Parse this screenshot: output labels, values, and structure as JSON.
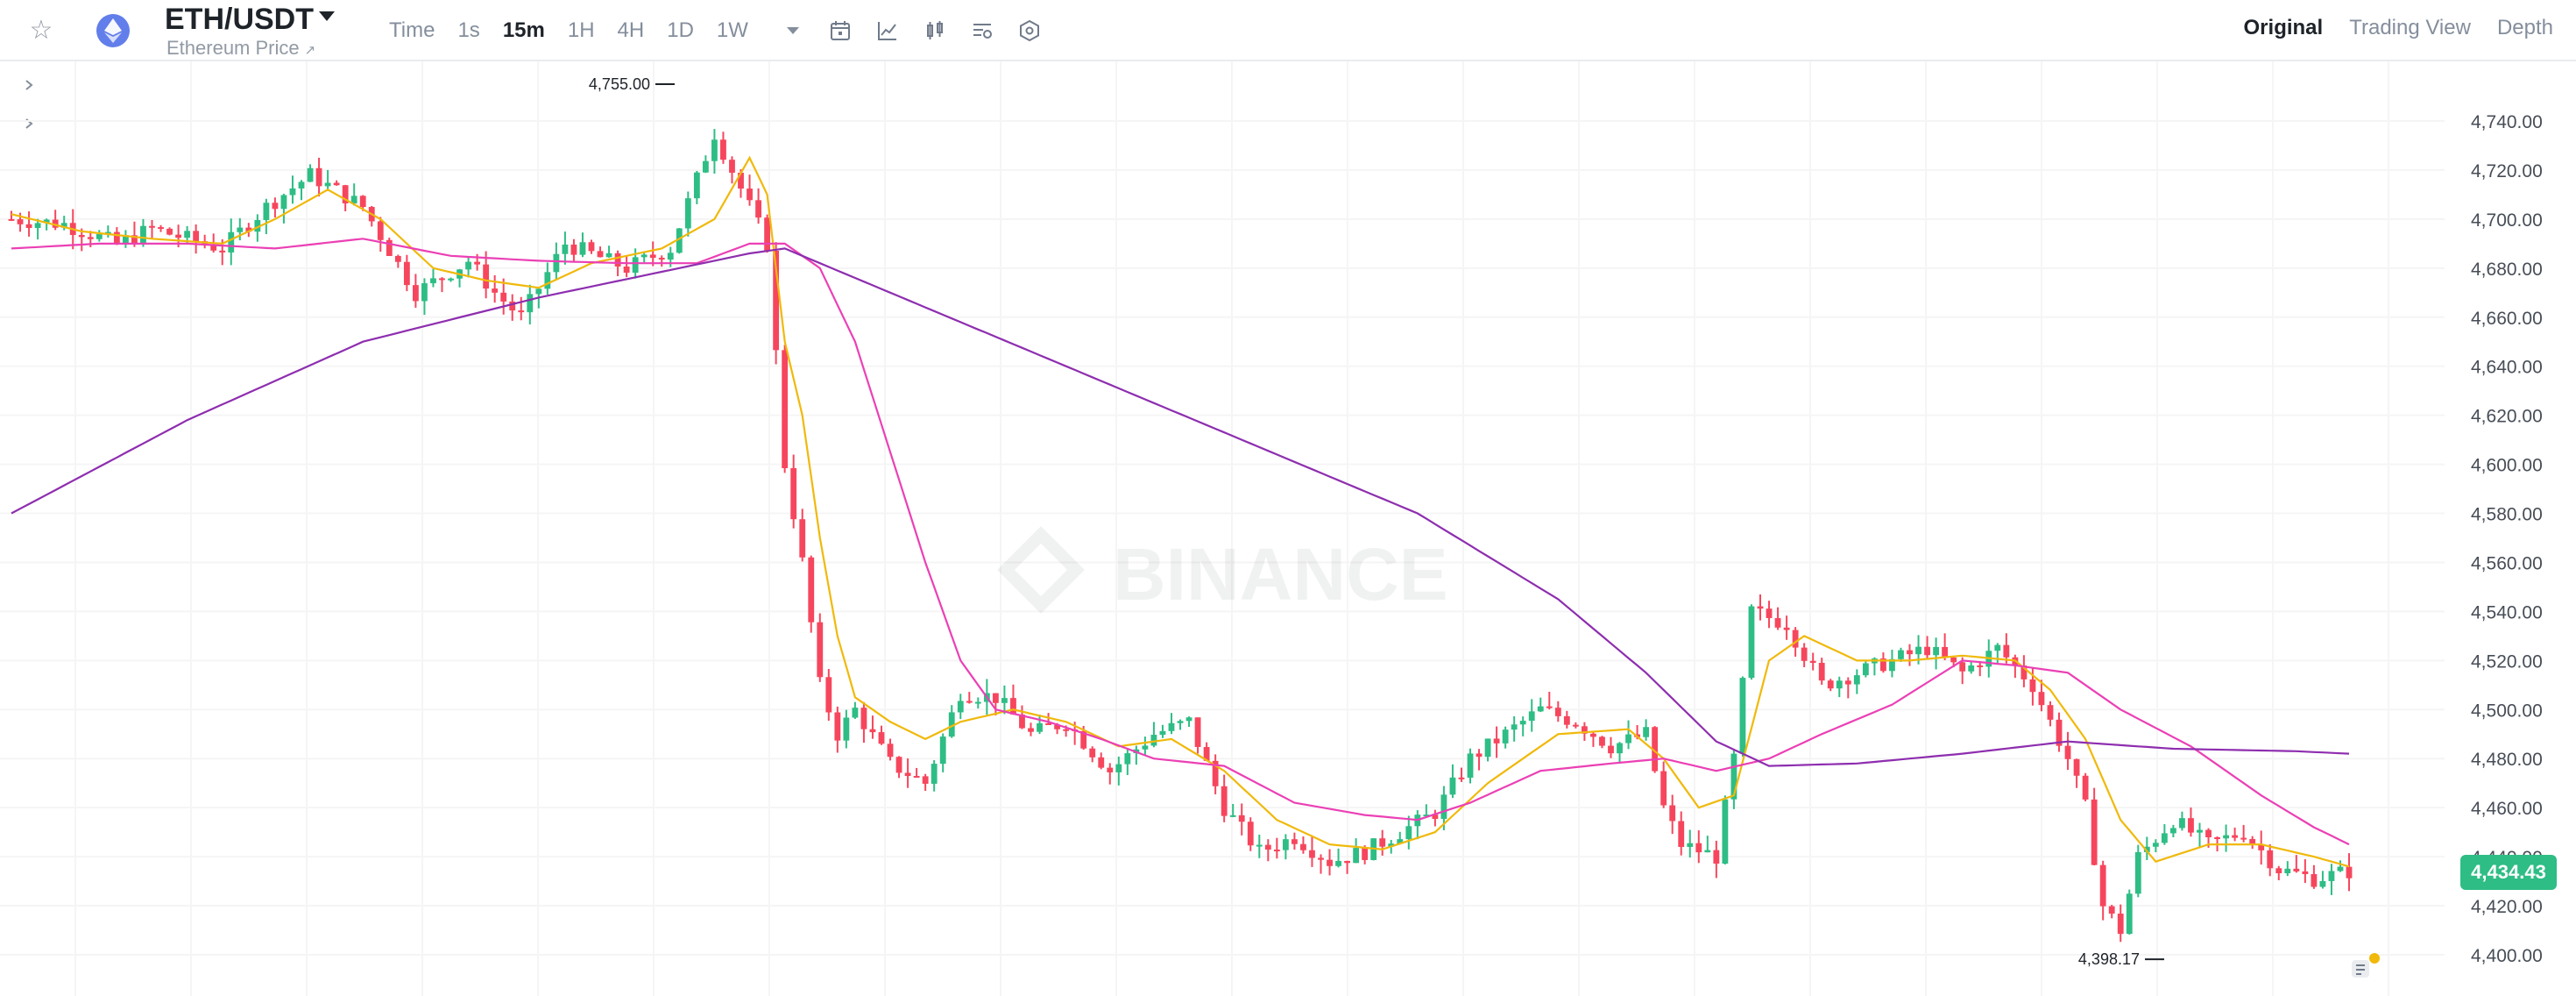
{
  "header": {
    "pair": "ETH/USDT",
    "subtitle": "Ethereum Price",
    "subtitle_link_glyph": "↗",
    "coin_icon": "ethereum-icon",
    "intervals": [
      "Time",
      "1s",
      "15m",
      "1H",
      "4H",
      "1D",
      "1W"
    ],
    "active_interval": "15m",
    "tool_icons": [
      "calendar-icon",
      "indicator-icon",
      "candle-type-icon",
      "settings-list-icon",
      "hexagon-settings-icon"
    ],
    "views": [
      "Original",
      "Trading View",
      "Depth"
    ],
    "active_view": "Original"
  },
  "watermark": "BINANCE",
  "current_price_label": "4,434.43",
  "colors": {
    "up": "#2ebd85",
    "down": "#f6465d",
    "ma7": "#f0b90b",
    "ma25": "#eb40b5",
    "ma99": "#8e2eaf",
    "grid": "#f5f5f5",
    "accent_tag": "#2ebd85"
  },
  "chart_data": {
    "type": "candlestick",
    "y_axis": {
      "min": 4390,
      "max": 4760,
      "ticks": [
        4400,
        4420,
        4440,
        4460,
        4480,
        4500,
        4520,
        4540,
        4560,
        4580,
        4600,
        4620,
        4640,
        4660,
        4680,
        4700,
        4720,
        4740
      ],
      "tick_labels": [
        "4,400.00",
        "4,420.00",
        "4,440.00",
        "4,460.00",
        "4,480.00",
        "4,500.00",
        "4,520.00",
        "4,540.00",
        "4,560.00",
        "4,580.00",
        "4,600.00",
        "4,620.00",
        "4,640.00",
        "4,660.00",
        "4,680.00",
        "4,700.00",
        "4,720.00",
        "4,740.00"
      ]
    },
    "grid": true,
    "annotations": [
      {
        "label": "4,755.00",
        "value": 4755,
        "type": "high"
      },
      {
        "label": "4,398.17",
        "value": 4398.17,
        "type": "low"
      }
    ],
    "current_price": 4434.43,
    "close_path": [
      [
        0,
        4700
      ],
      [
        6,
        4698
      ],
      [
        12,
        4690
      ],
      [
        16,
        4696
      ],
      [
        24,
        4688
      ],
      [
        29,
        4705
      ],
      [
        34,
        4718
      ],
      [
        40,
        4705
      ],
      [
        46,
        4670
      ],
      [
        52,
        4683
      ],
      [
        55,
        4670
      ],
      [
        58,
        4660
      ],
      [
        63,
        4690
      ],
      [
        70,
        4680
      ],
      [
        75,
        4688
      ],
      [
        80,
        4735
      ],
      [
        84,
        4705
      ],
      [
        86,
        4690
      ],
      [
        88,
        4600
      ],
      [
        90,
        4560
      ],
      [
        92,
        4510
      ],
      [
        94,
        4490
      ],
      [
        96,
        4500
      ],
      [
        100,
        4478
      ],
      [
        104,
        4470
      ],
      [
        108,
        4507
      ],
      [
        112,
        4505
      ],
      [
        116,
        4490
      ],
      [
        120,
        4495
      ],
      [
        125,
        4475
      ],
      [
        130,
        4490
      ],
      [
        134,
        4495
      ],
      [
        138,
        4460
      ],
      [
        142,
        4442
      ],
      [
        146,
        4448
      ],
      [
        150,
        4438
      ],
      [
        154,
        4442
      ],
      [
        158,
        4450
      ],
      [
        162,
        4458
      ],
      [
        166,
        4480
      ],
      [
        170,
        4490
      ],
      [
        174,
        4500
      ],
      [
        178,
        4495
      ],
      [
        182,
        4485
      ],
      [
        186,
        4490
      ],
      [
        188,
        4460
      ],
      [
        190,
        4445
      ],
      [
        194,
        4440
      ],
      [
        196,
        4480
      ],
      [
        198,
        4540
      ],
      [
        202,
        4535
      ],
      [
        206,
        4510
      ],
      [
        210,
        4515
      ],
      [
        214,
        4520
      ],
      [
        218,
        4525
      ],
      [
        222,
        4515
      ],
      [
        226,
        4525
      ],
      [
        230,
        4510
      ],
      [
        232,
        4495
      ],
      [
        234,
        4480
      ],
      [
        236,
        4460
      ],
      [
        238,
        4420
      ],
      [
        240,
        4410
      ],
      [
        242,
        4440
      ],
      [
        246,
        4455
      ],
      [
        250,
        4445
      ],
      [
        254,
        4450
      ],
      [
        258,
        4435
      ],
      [
        262,
        4431
      ],
      [
        266,
        4434
      ]
    ],
    "ma_curves": [
      {
        "key": "ma7",
        "points": [
          [
            0,
            4702
          ],
          [
            8,
            4695
          ],
          [
            16,
            4692
          ],
          [
            24,
            4690
          ],
          [
            30,
            4700
          ],
          [
            36,
            4712
          ],
          [
            42,
            4700
          ],
          [
            48,
            4680
          ],
          [
            54,
            4675
          ],
          [
            60,
            4672
          ],
          [
            66,
            4682
          ],
          [
            74,
            4688
          ],
          [
            80,
            4700
          ],
          [
            84,
            4725
          ],
          [
            86,
            4710
          ],
          [
            88,
            4650
          ],
          [
            90,
            4620
          ],
          [
            92,
            4570
          ],
          [
            94,
            4530
          ],
          [
            96,
            4505
          ],
          [
            100,
            4495
          ],
          [
            104,
            4488
          ],
          [
            108,
            4495
          ],
          [
            114,
            4500
          ],
          [
            120,
            4495
          ],
          [
            126,
            4485
          ],
          [
            132,
            4488
          ],
          [
            138,
            4475
          ],
          [
            144,
            4455
          ],
          [
            150,
            4445
          ],
          [
            156,
            4443
          ],
          [
            162,
            4450
          ],
          [
            168,
            4470
          ],
          [
            176,
            4490
          ],
          [
            184,
            4492
          ],
          [
            188,
            4480
          ],
          [
            192,
            4460
          ],
          [
            196,
            4465
          ],
          [
            200,
            4520
          ],
          [
            204,
            4530
          ],
          [
            210,
            4520
          ],
          [
            216,
            4520
          ],
          [
            222,
            4522
          ],
          [
            228,
            4520
          ],
          [
            232,
            4508
          ],
          [
            236,
            4488
          ],
          [
            240,
            4455
          ],
          [
            244,
            4438
          ],
          [
            250,
            4445
          ],
          [
            256,
            4445
          ],
          [
            262,
            4440
          ],
          [
            266,
            4436
          ]
        ]
      },
      {
        "key": "ma25",
        "points": [
          [
            0,
            4688
          ],
          [
            10,
            4690
          ],
          [
            20,
            4690
          ],
          [
            30,
            4688
          ],
          [
            40,
            4692
          ],
          [
            50,
            4685
          ],
          [
            60,
            4683
          ],
          [
            70,
            4682
          ],
          [
            78,
            4682
          ],
          [
            84,
            4690
          ],
          [
            88,
            4690
          ],
          [
            92,
            4680
          ],
          [
            96,
            4650
          ],
          [
            100,
            4605
          ],
          [
            104,
            4560
          ],
          [
            108,
            4520
          ],
          [
            112,
            4500
          ],
          [
            118,
            4495
          ],
          [
            124,
            4488
          ],
          [
            130,
            4480
          ],
          [
            138,
            4477
          ],
          [
            146,
            4462
          ],
          [
            154,
            4457
          ],
          [
            160,
            4455
          ],
          [
            166,
            4462
          ],
          [
            174,
            4475
          ],
          [
            182,
            4478
          ],
          [
            188,
            4480
          ],
          [
            194,
            4475
          ],
          [
            200,
            4480
          ],
          [
            206,
            4490
          ],
          [
            214,
            4502
          ],
          [
            222,
            4520
          ],
          [
            228,
            4518
          ],
          [
            234,
            4515
          ],
          [
            240,
            4500
          ],
          [
            248,
            4485
          ],
          [
            256,
            4465
          ],
          [
            262,
            4452
          ],
          [
            266,
            4445
          ]
        ]
      },
      {
        "key": "ma99",
        "points": [
          [
            0,
            4580
          ],
          [
            20,
            4618
          ],
          [
            40,
            4650
          ],
          [
            60,
            4668
          ],
          [
            76,
            4680
          ],
          [
            84,
            4686
          ],
          [
            88,
            4688
          ],
          [
            100,
            4670
          ],
          [
            120,
            4640
          ],
          [
            140,
            4610
          ],
          [
            160,
            4580
          ],
          [
            176,
            4545
          ],
          [
            186,
            4515
          ],
          [
            194,
            4487
          ],
          [
            200,
            4477
          ],
          [
            210,
            4478
          ],
          [
            222,
            4482
          ],
          [
            234,
            4487
          ],
          [
            246,
            4484
          ],
          [
            260,
            4483
          ],
          [
            266,
            4482
          ]
        ]
      }
    ]
  }
}
